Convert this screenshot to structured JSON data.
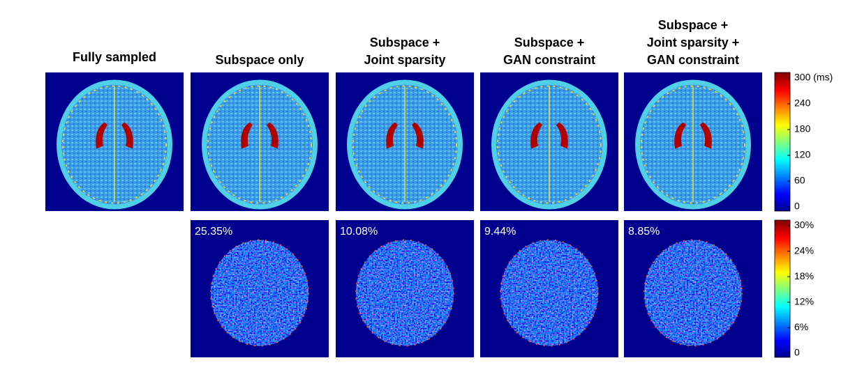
{
  "columns": [
    {
      "title": [
        "Fully sampled"
      ]
    },
    {
      "title": [
        "Subspace only"
      ],
      "error": "25.35%"
    },
    {
      "title": [
        "Subspace +",
        "Joint sparsity"
      ],
      "error": "10.08%"
    },
    {
      "title": [
        "Subspace +",
        "GAN constraint"
      ],
      "error": "9.44%"
    },
    {
      "title": [
        "Subspace +",
        "Joint sparsity +",
        "GAN constraint"
      ],
      "error": "8.85%"
    }
  ],
  "colorbars": [
    {
      "ticks": [
        "300 (ms)",
        "240",
        "180",
        "120",
        "60",
        "0"
      ]
    },
    {
      "ticks": [
        "30%",
        "24%",
        "18%",
        "12%",
        "6%",
        "0"
      ]
    }
  ]
}
